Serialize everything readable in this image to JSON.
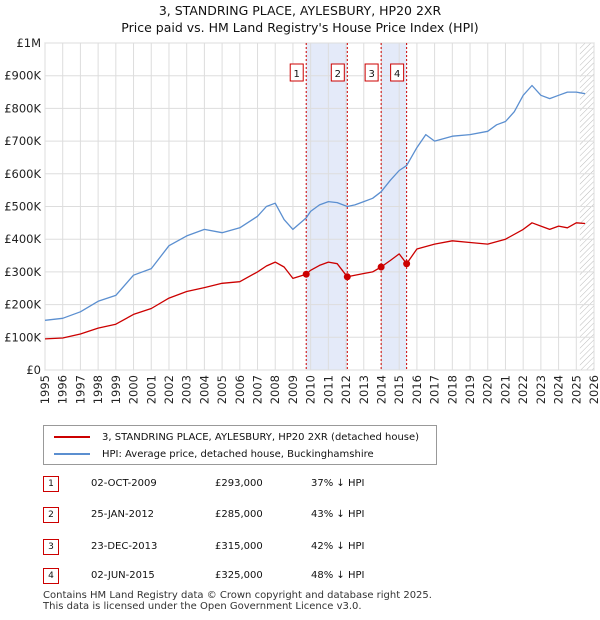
{
  "chart_data": {
    "type": "line",
    "title": "3, STANDRING PLACE, AYLESBURY, HP20 2XR",
    "subtitle": "Price paid vs. HM Land Registry's House Price Index (HPI)",
    "x_range": [
      1995,
      2026
    ],
    "ylim": [
      0,
      1000000
    ],
    "x_ticks": [
      "1995",
      "1996",
      "1997",
      "1998",
      "1999",
      "2000",
      "2001",
      "2002",
      "2003",
      "2004",
      "2005",
      "2006",
      "2007",
      "2008",
      "2009",
      "2010",
      "2011",
      "2012",
      "2013",
      "2014",
      "2015",
      "2016",
      "2017",
      "2018",
      "2019",
      "2020",
      "2021",
      "2022",
      "2023",
      "2024",
      "2025",
      "2026"
    ],
    "y_ticks": [
      {
        "value": 0,
        "label": "£0"
      },
      {
        "value": 100000,
        "label": "£100K"
      },
      {
        "value": 200000,
        "label": "£200K"
      },
      {
        "value": 300000,
        "label": "£300K"
      },
      {
        "value": 400000,
        "label": "£400K"
      },
      {
        "value": 500000,
        "label": "£500K"
      },
      {
        "value": 600000,
        "label": "£600K"
      },
      {
        "value": 700000,
        "label": "£700K"
      },
      {
        "value": 800000,
        "label": "£800K"
      },
      {
        "value": 900000,
        "label": "£900K"
      },
      {
        "value": 1000000,
        "label": "£1M"
      }
    ],
    "grid": true,
    "forecast_start": 2025.2,
    "highlight_bands": [
      [
        2009.75,
        2012.07
      ],
      [
        2013.98,
        2015.42
      ]
    ],
    "series": [
      {
        "name": "3, STANDRING PLACE, AYLESBURY, HP20 2XR (detached house)",
        "color": "#cc0000",
        "x": [
          1995,
          1996,
          1997,
          1998,
          1999,
          2000,
          2001,
          2002,
          2003,
          2004,
          2005,
          2006,
          2007,
          2007.5,
          2008,
          2008.5,
          2009,
          2009.75,
          2010,
          2010.5,
          2011,
          2011.5,
          2012.07,
          2012.5,
          2013,
          2013.5,
          2013.98,
          2014.5,
          2015,
          2015.42,
          2016,
          2017,
          2018,
          2019,
          2020,
          2021,
          2022,
          2022.5,
          2023,
          2023.5,
          2024,
          2024.5,
          2025,
          2025.5
        ],
        "values": [
          95000,
          98000,
          110000,
          128000,
          140000,
          170000,
          188000,
          220000,
          240000,
          252000,
          265000,
          270000,
          300000,
          318000,
          330000,
          315000,
          280000,
          293000,
          305000,
          320000,
          330000,
          325000,
          285000,
          290000,
          295000,
          300000,
          315000,
          335000,
          355000,
          325000,
          370000,
          385000,
          395000,
          390000,
          385000,
          400000,
          430000,
          450000,
          440000,
          430000,
          440000,
          435000,
          450000,
          448000
        ]
      },
      {
        "name": "HPI: Average price, detached house, Buckinghamshire",
        "color": "#5b8fd0",
        "x": [
          1995,
          1996,
          1997,
          1998,
          1999,
          2000,
          2001,
          2002,
          2003,
          2004,
          2005,
          2006,
          2007,
          2007.5,
          2008,
          2008.5,
          2009,
          2009.75,
          2010,
          2010.5,
          2011,
          2011.5,
          2012.07,
          2012.5,
          2013,
          2013.5,
          2013.98,
          2014.5,
          2015,
          2015.42,
          2016,
          2016.5,
          2017,
          2018,
          2019,
          2020,
          2020.5,
          2021,
          2021.5,
          2022,
          2022.5,
          2023,
          2023.5,
          2024,
          2024.5,
          2025,
          2025.5
        ],
        "values": [
          152000,
          158000,
          178000,
          210000,
          228000,
          290000,
          310000,
          380000,
          410000,
          430000,
          420000,
          435000,
          470000,
          500000,
          510000,
          460000,
          430000,
          465000,
          485000,
          505000,
          515000,
          512000,
          500000,
          505000,
          515000,
          525000,
          545000,
          580000,
          610000,
          625000,
          680000,
          720000,
          700000,
          715000,
          720000,
          730000,
          750000,
          760000,
          790000,
          840000,
          870000,
          840000,
          830000,
          840000,
          850000,
          850000,
          845000
        ]
      }
    ],
    "sale_markers": [
      {
        "label": "1",
        "x": 2009.75,
        "value": 293000
      },
      {
        "label": "2",
        "x": 2012.07,
        "value": 285000
      },
      {
        "label": "3",
        "x": 2013.98,
        "value": 315000
      },
      {
        "label": "4",
        "x": 2015.42,
        "value": 325000
      }
    ]
  },
  "legend": {
    "items": [
      {
        "label": "3, STANDRING PLACE, AYLESBURY, HP20 2XR (detached house)",
        "color": "#cc0000"
      },
      {
        "label": "HPI: Average price, detached house, Buckinghamshire",
        "color": "#5b8fd0"
      }
    ]
  },
  "transactions": [
    {
      "num": "1",
      "date": "02-OCT-2009",
      "price": "£293,000",
      "hpi": "37% ↓ HPI"
    },
    {
      "num": "2",
      "date": "25-JAN-2012",
      "price": "£285,000",
      "hpi": "43% ↓ HPI"
    },
    {
      "num": "3",
      "date": "23-DEC-2013",
      "price": "£315,000",
      "hpi": "42% ↓ HPI"
    },
    {
      "num": "4",
      "date": "02-JUN-2015",
      "price": "£325,000",
      "hpi": "48% ↓ HPI"
    }
  ],
  "footer": {
    "line1": "Contains HM Land Registry data © Crown copyright and database right 2025.",
    "line2": "This data is licensed under the Open Government Licence v3.0."
  }
}
